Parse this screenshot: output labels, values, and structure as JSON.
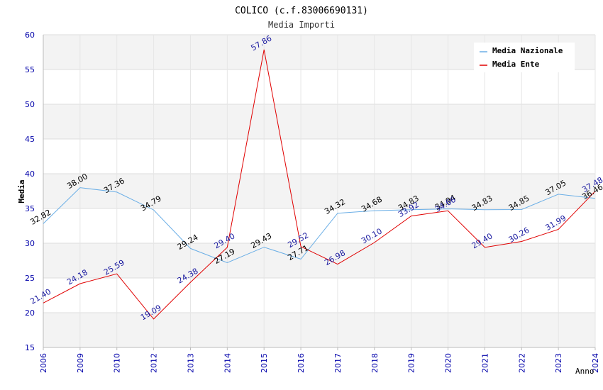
{
  "chart_data": {
    "type": "line",
    "title": "COLICO (c.f.83006690131)",
    "subtitle": "Media Importi",
    "xlabel": "Anno",
    "ylabel": "Media",
    "ylim": [
      15,
      60
    ],
    "yticks": [
      "15",
      "20",
      "25",
      "30",
      "35",
      "40",
      "45",
      "50",
      "55",
      "60"
    ],
    "categories": [
      "2006",
      "2009",
      "2010",
      "2012",
      "2013",
      "2014",
      "2015",
      "2016",
      "2017",
      "2018",
      "2019",
      "2020",
      "2021",
      "2022",
      "2023",
      "2024"
    ],
    "series": [
      {
        "name": "Media Nazionale",
        "color": "#6aaee6",
        "label_color": "#000000",
        "values": [
          32.82,
          38.0,
          37.36,
          34.79,
          29.24,
          27.19,
          29.43,
          27.71,
          34.32,
          34.68,
          34.83,
          34.94,
          34.83,
          34.85,
          37.05,
          36.46
        ],
        "labels": [
          "32.82",
          "38.00",
          "37.36",
          "34.79",
          "29.24",
          "27.19",
          "29.43",
          "27.71",
          "34.32",
          "34.68",
          "34.83",
          "34.94",
          "34.83",
          "34.85",
          "37.05",
          "36.46"
        ]
      },
      {
        "name": "Media Ente",
        "color": "#e00000",
        "label_color": "#1a1aa0",
        "values": [
          21.4,
          24.18,
          25.59,
          19.09,
          24.38,
          29.4,
          57.86,
          29.52,
          26.98,
          30.1,
          33.92,
          34.66,
          29.4,
          30.26,
          31.99,
          37.48
        ],
        "labels": [
          "21.40",
          "24.18",
          "25.59",
          "19.09",
          "24.38",
          "29.40",
          "57.86",
          "29.52",
          "26.98",
          "30.10",
          "33.92",
          "34.66",
          "29.40",
          "30.26",
          "31.99",
          "37.48"
        ]
      }
    ],
    "legend_position": "top-right",
    "grid": true,
    "band_color": "#f3f3f3",
    "axis_color": "#0000aa"
  }
}
